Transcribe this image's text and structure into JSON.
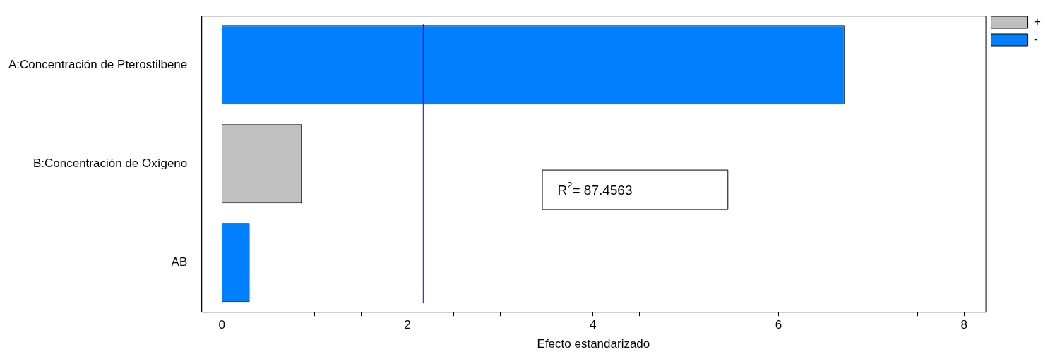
{
  "chart_data": {
    "type": "bar",
    "orientation": "horizontal",
    "stacked": true,
    "categories": [
      "A:Concentración de Pterostilbene",
      "B:Concentración de Oxígeno",
      "AB"
    ],
    "series": [
      {
        "name": "+",
        "color": "#c0c0c0",
        "values": [
          null,
          0.86,
          null
        ]
      },
      {
        "name": "-",
        "color": "#0080ff",
        "values": [
          6.71,
          null,
          0.3
        ]
      }
    ],
    "xlabel": "Efecto estandarizado",
    "xlim": [
      -0.22,
      8.23
    ],
    "xticks": [
      0,
      {
        "value": 0.5,
        "label": null
      },
      2,
      {
        "value": 1,
        "label": null
      },
      {
        "value": 1.5,
        "label": null
      },
      {
        "value": 2.5,
        "label": null
      },
      {
        "value": 3,
        "label": null
      },
      {
        "value": 3.5,
        "label": null
      },
      4,
      {
        "value": 4.5,
        "label": null
      },
      {
        "value": 5,
        "label": null
      },
      {
        "value": 5.5,
        "label": null
      },
      6,
      {
        "value": 6.5,
        "label": null
      },
      {
        "value": 7,
        "label": null
      },
      {
        "value": 7.5,
        "label": null
      },
      8
    ],
    "ref_lines": [
      {
        "axis": "x",
        "value": 2.17,
        "color": "#0000ff"
      }
    ],
    "annotations": [
      "R$^{2}$= 87.4563"
    ],
    "legend": "top right",
    "grid": false
  }
}
